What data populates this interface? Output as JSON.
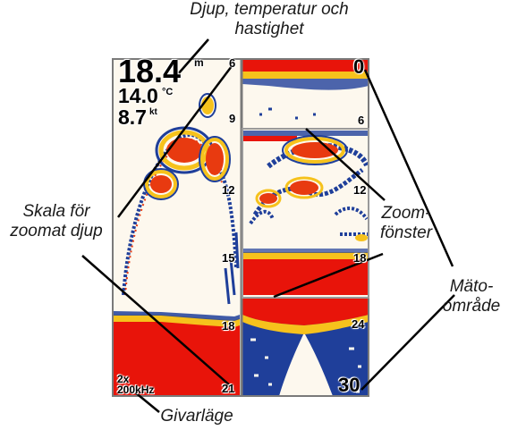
{
  "callouts": {
    "depth_temp_speed_line1": "Djup, temperatur och",
    "depth_temp_speed_line2": "hastighet",
    "zoom_scale_line1": "Skala för",
    "zoom_scale_line2": "zoomat djup",
    "zoom_window_line1": "Zoom-",
    "zoom_window_line2": "fönster",
    "range_line1": "Mäto-",
    "range_line2": "område",
    "transducer_mode": "Givarläge"
  },
  "display": {
    "depth_value": "18.4",
    "depth_unit": "m",
    "temperature_value": "14.0",
    "temperature_unit": "°C",
    "speed_value": "8.7",
    "speed_unit": "kt",
    "zoom_level": "2x",
    "frequency": "200kHz"
  },
  "left_scale": [
    "6",
    "9",
    "12",
    "15",
    "18",
    "21"
  ],
  "top_right_scale": [
    "0",
    "6"
  ],
  "zoom_scale": [
    "12",
    "18"
  ],
  "bottom_right_scale": [
    "24",
    "30"
  ],
  "colors": {
    "background": "#fdf8ee",
    "bottom_red": "#e8140a",
    "fish_red": "#e83a10",
    "yellow": "#f6c21c",
    "blue": "#1f3f9a",
    "frame": "#7a7a7a",
    "zoom_frame": "#9a9a9a"
  }
}
